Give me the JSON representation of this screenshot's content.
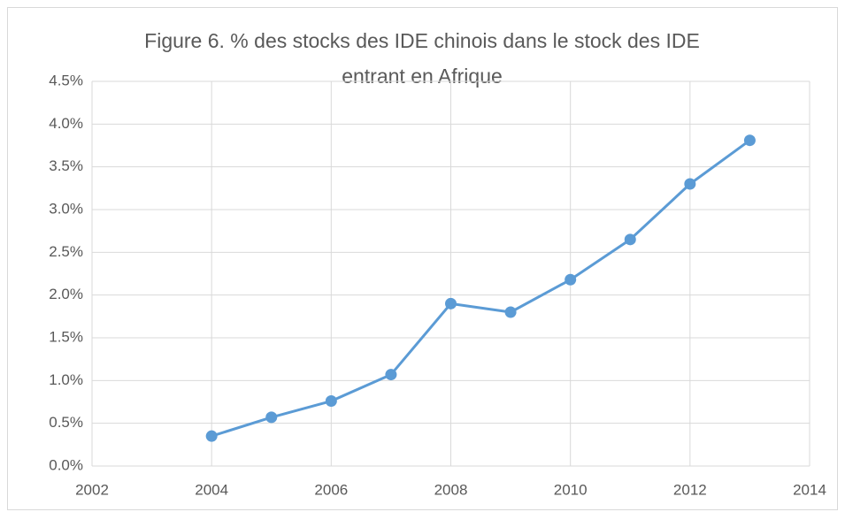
{
  "chart_data": {
    "type": "line",
    "title": [
      "Figure 6. % des stocks des IDE chinois dans le stock des IDE",
      "entrant en Afrique"
    ],
    "x": [
      2004,
      2005,
      2006,
      2007,
      2008,
      2009,
      2010,
      2011,
      2012,
      2013
    ],
    "series": [
      {
        "color": "#5b9bd5",
        "values": [
          0.35,
          0.57,
          0.76,
          1.07,
          1.9,
          1.8,
          2.18,
          2.65,
          3.3,
          3.81
        ]
      }
    ],
    "xlim": [
      2002,
      2014
    ],
    "xticks": [
      2002,
      2004,
      2006,
      2008,
      2010,
      2012,
      2014
    ],
    "ylim": [
      0,
      4.5
    ],
    "yticks": [
      {
        "value": 0,
        "label": "0.0%"
      },
      {
        "value": 0.5,
        "label": "0.5%"
      },
      {
        "value": 1,
        "label": "1.0%"
      },
      {
        "value": 1.5,
        "label": "1.5%"
      },
      {
        "value": 2,
        "label": "2.0%"
      },
      {
        "value": 2.5,
        "label": "2.5%"
      },
      {
        "value": 3,
        "label": "3.0%"
      },
      {
        "value": 3.5,
        "label": "3.5%"
      },
      {
        "value": 4,
        "label": "4.0%"
      },
      {
        "value": 4.5,
        "label": "4.5%"
      }
    ],
    "grid": true
  }
}
